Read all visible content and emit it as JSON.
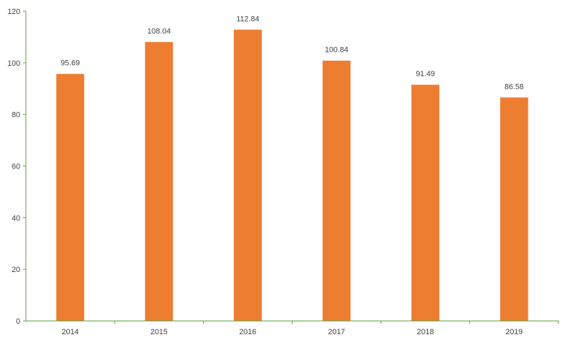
{
  "chart_data": {
    "type": "bar",
    "categories": [
      "2014",
      "2015",
      "2016",
      "2017",
      "2018",
      "2019"
    ],
    "values": [
      95.69,
      108.04,
      112.84,
      100.84,
      91.49,
      86.58
    ],
    "data_labels": [
      "95.69",
      "108.04",
      "112.84",
      "100.84",
      "91.49",
      "86.58"
    ],
    "y_ticks": [
      "0",
      "20",
      "40",
      "60",
      "80",
      "100",
      "120"
    ],
    "ylim": [
      0,
      120
    ],
    "title": "",
    "xlabel": "",
    "ylabel": "",
    "grid": false,
    "legend": "none",
    "colors": {
      "bar": "#ED7D31",
      "axis": "#5A9B3C",
      "text": "#404040"
    }
  }
}
